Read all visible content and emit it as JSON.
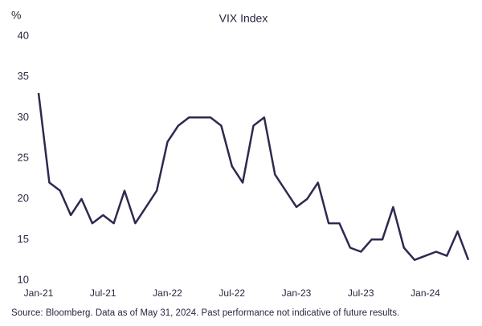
{
  "chart_data": {
    "type": "line",
    "title": "VIX Index",
    "y_label": "%",
    "source": "Source: Bloomberg. Data as of May 31, 2024. Past performance not indicative of future results.",
    "x": [
      "2021-01",
      "2021-02",
      "2021-03",
      "2021-04",
      "2021-05",
      "2021-06",
      "2021-07",
      "2021-08",
      "2021-09",
      "2021-10",
      "2021-11",
      "2021-12",
      "2022-01",
      "2022-02",
      "2022-03",
      "2022-04",
      "2022-05",
      "2022-06",
      "2022-07",
      "2022-08",
      "2022-09",
      "2022-10",
      "2022-11",
      "2022-12",
      "2023-01",
      "2023-02",
      "2023-03",
      "2023-04",
      "2023-05",
      "2023-06",
      "2023-07",
      "2023-08",
      "2023-09",
      "2023-10",
      "2023-11",
      "2023-12",
      "2024-01",
      "2024-02",
      "2024-03",
      "2024-04",
      "2024-05"
    ],
    "series": [
      {
        "name": "VIX Index",
        "color": "#2e2950",
        "values": [
          33,
          22,
          21,
          18,
          20,
          17,
          18,
          17,
          21,
          17,
          19,
          21,
          27,
          29,
          30,
          30,
          30,
          29,
          24,
          22,
          29,
          30,
          23,
          21,
          19,
          20,
          22,
          17,
          17,
          14,
          13.5,
          15,
          15,
          19,
          14,
          12.5,
          13,
          13.5,
          13,
          16,
          12.5
        ]
      }
    ],
    "xlim": [
      "2021-01",
      "2024-05"
    ],
    "xticks": [
      {
        "value": "2021-01",
        "label": "Jan-21"
      },
      {
        "value": "2021-07",
        "label": "Jul-21"
      },
      {
        "value": "2022-01",
        "label": "Jan-22"
      },
      {
        "value": "2022-07",
        "label": "Jul-22"
      },
      {
        "value": "2023-01",
        "label": "Jan-23"
      },
      {
        "value": "2023-07",
        "label": "Jul-23"
      },
      {
        "value": "2024-01",
        "label": "Jan-24"
      }
    ],
    "ylim": [
      10,
      40
    ],
    "yticks": [
      10,
      15,
      20,
      25,
      30,
      35,
      40
    ],
    "grid": false
  }
}
